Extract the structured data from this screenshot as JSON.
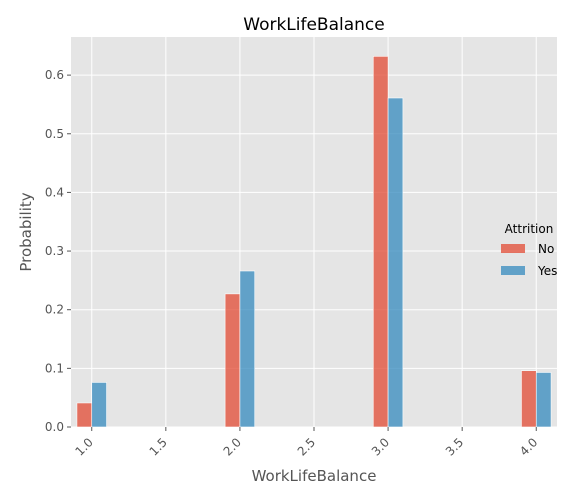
{
  "chart_data": {
    "type": "bar",
    "title": "WorkLifeBalance",
    "xlabel": "WorkLifeBalance",
    "ylabel": "Probability",
    "xlim": [
      0.86,
      4.14
    ],
    "ylim": [
      0,
      0.665
    ],
    "xticks": [
      1.0,
      1.5,
      2.0,
      2.5,
      3.0,
      3.5,
      4.0
    ],
    "xtick_labels": [
      "1.0",
      "1.5",
      "2.0",
      "2.5",
      "3.0",
      "3.5",
      "4.0"
    ],
    "yticks": [
      0.0,
      0.1,
      0.2,
      0.3,
      0.4,
      0.5,
      0.6
    ],
    "ytick_labels": [
      "0.0",
      "0.1",
      "0.2",
      "0.3",
      "0.4",
      "0.5",
      "0.6"
    ],
    "categories": [
      1,
      2,
      3,
      4
    ],
    "bin_width": 0.1,
    "grid": true,
    "legend": {
      "title": "Attrition",
      "placement": "right"
    },
    "series": [
      {
        "name": "No",
        "color": "#e24a33",
        "values": [
          0.041,
          0.227,
          0.632,
          0.096
        ]
      },
      {
        "name": "Yes",
        "color": "#348abd",
        "values": [
          0.076,
          0.266,
          0.561,
          0.093
        ]
      }
    ]
  },
  "colors": {
    "plot_background": "#e5e5e5",
    "grid": "#ffffff",
    "bar_alpha": 0.75
  }
}
